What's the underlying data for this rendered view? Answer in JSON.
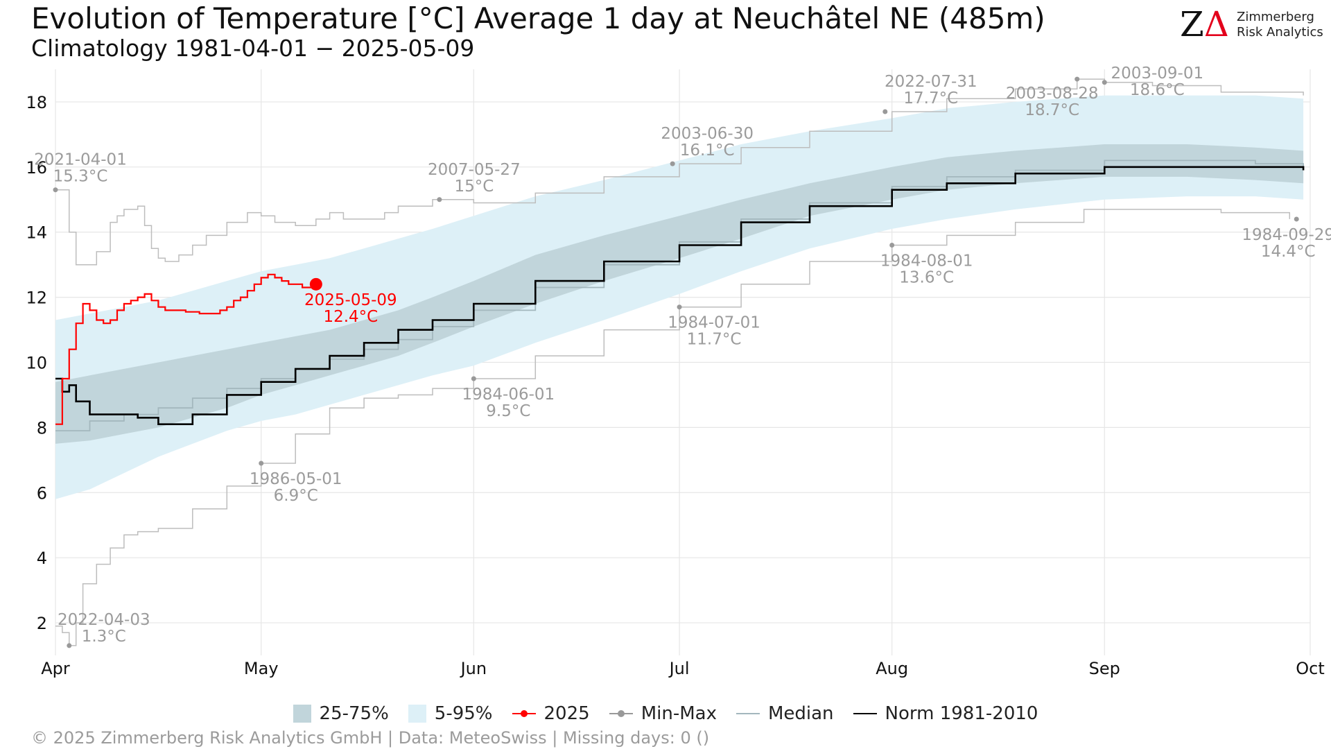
{
  "header": {
    "title": "Evolution of Temperature [°C] Average 1 day at Neuchâtel  NE (485m)",
    "subtitle": "Climatology 1981-04-01 − 2025-05-09"
  },
  "logo": {
    "mark_z": "Z",
    "mark_delta": "Δ",
    "line1": "Zimmerberg",
    "line2": "Risk Analytics"
  },
  "chart_data": {
    "type": "line",
    "title": "Evolution of Temperature [°C] Average 1 day at Neuchâtel  NE (485m)",
    "xlabel": "",
    "ylabel": "",
    "x_unit": "day of season (0 = Apr 1)",
    "xlim": [
      0,
      183
    ],
    "ylim": [
      1,
      19
    ],
    "y_ticks": [
      2,
      4,
      6,
      8,
      10,
      12,
      14,
      16,
      18
    ],
    "x_ticks": [
      {
        "label": "Apr",
        "day": 0
      },
      {
        "label": "May",
        "day": 30
      },
      {
        "label": "Jun",
        "day": 61
      },
      {
        "label": "Jul",
        "day": 91
      },
      {
        "label": "Aug",
        "day": 122
      },
      {
        "label": "Sep",
        "day": 153
      },
      {
        "label": "Oct",
        "day": 183
      }
    ],
    "grid": true,
    "legend_position": "bottom",
    "colors": {
      "band_25_75": "#c1d5db",
      "band_5_95": "#ddf0f7",
      "series_2025": "#ff0000",
      "min_max": "#bdbdbd",
      "min_max_point": "#999999",
      "median": "#a3b7bd",
      "norm": "#000000",
      "annotation": "#9b9b9b",
      "grid": "#e6e6e6"
    },
    "band_5_95": {
      "x": [
        0,
        5,
        10,
        15,
        20,
        25,
        30,
        35,
        40,
        45,
        50,
        55,
        61,
        70,
        80,
        91,
        100,
        110,
        122,
        130,
        140,
        153,
        165,
        175,
        182
      ],
      "lower": [
        5.8,
        6.1,
        6.6,
        7.1,
        7.5,
        7.9,
        8.2,
        8.4,
        8.7,
        9.0,
        9.3,
        9.6,
        9.9,
        10.6,
        11.3,
        12.1,
        12.8,
        13.5,
        14.1,
        14.4,
        14.7,
        15.0,
        15.1,
        15.1,
        15.0
      ],
      "upper": [
        11.3,
        11.5,
        11.7,
        11.9,
        12.2,
        12.5,
        12.8,
        13.0,
        13.2,
        13.5,
        13.8,
        14.1,
        14.5,
        15.1,
        15.6,
        16.2,
        16.7,
        17.1,
        17.5,
        17.8,
        18.0,
        18.2,
        18.2,
        18.2,
        18.1
      ]
    },
    "band_25_75": {
      "x": [
        0,
        5,
        10,
        15,
        20,
        25,
        30,
        35,
        40,
        45,
        50,
        55,
        61,
        70,
        80,
        91,
        100,
        110,
        122,
        130,
        140,
        153,
        165,
        175,
        182
      ],
      "lower": [
        7.5,
        7.6,
        7.8,
        8.0,
        8.3,
        8.6,
        9.0,
        9.3,
        9.6,
        9.9,
        10.2,
        10.6,
        11.1,
        11.8,
        12.5,
        13.2,
        13.8,
        14.5,
        15.0,
        15.3,
        15.5,
        15.7,
        15.7,
        15.6,
        15.5
      ],
      "upper": [
        9.4,
        9.6,
        9.8,
        10.0,
        10.2,
        10.4,
        10.6,
        10.8,
        11.0,
        11.3,
        11.6,
        12.0,
        12.5,
        13.3,
        13.9,
        14.5,
        15.0,
        15.5,
        16.0,
        16.3,
        16.5,
        16.7,
        16.7,
        16.6,
        16.5
      ]
    },
    "series": [
      {
        "name": "Median",
        "x": [
          0,
          5,
          10,
          15,
          20,
          25,
          30,
          35,
          40,
          45,
          50,
          55,
          61,
          70,
          80,
          91,
          100,
          110,
          122,
          130,
          140,
          153,
          165,
          175,
          182
        ],
        "values": [
          7.9,
          8.2,
          8.4,
          8.6,
          8.9,
          9.2,
          9.5,
          9.8,
          10.1,
          10.4,
          10.7,
          11.1,
          11.6,
          12.3,
          13.0,
          13.7,
          14.4,
          14.9,
          15.4,
          15.7,
          15.9,
          16.2,
          16.2,
          16.1,
          16.0
        ]
      },
      {
        "name": "Norm 1981-2010",
        "x": [
          0,
          1,
          2,
          3,
          5,
          8,
          12,
          15,
          20,
          25,
          30,
          35,
          40,
          45,
          50,
          55,
          61,
          70,
          80,
          91,
          100,
          110,
          122,
          130,
          140,
          153,
          165,
          175,
          182
        ],
        "values": [
          9.5,
          9.1,
          9.3,
          8.8,
          8.4,
          8.4,
          8.3,
          8.1,
          8.4,
          9.0,
          9.4,
          9.8,
          10.2,
          10.6,
          11.0,
          11.3,
          11.8,
          12.5,
          13.1,
          13.6,
          14.3,
          14.8,
          15.3,
          15.5,
          15.8,
          16.0,
          16.0,
          16.0,
          15.9
        ]
      },
      {
        "name": "2025",
        "x": [
          0,
          1,
          2,
          3,
          4,
          5,
          6,
          7,
          8,
          9,
          10,
          11,
          12,
          13,
          14,
          15,
          16,
          17,
          18,
          19,
          20,
          21,
          22,
          23,
          24,
          25,
          26,
          27,
          28,
          29,
          30,
          31,
          32,
          33,
          34,
          35,
          36,
          37,
          38
        ],
        "values": [
          8.1,
          9.5,
          10.4,
          11.2,
          11.8,
          11.6,
          11.3,
          11.2,
          11.3,
          11.6,
          11.8,
          11.9,
          12.0,
          12.1,
          11.9,
          11.7,
          11.6,
          11.6,
          11.6,
          11.55,
          11.55,
          11.5,
          11.5,
          11.5,
          11.6,
          11.7,
          11.9,
          12.0,
          12.2,
          12.4,
          12.6,
          12.7,
          12.6,
          12.5,
          12.4,
          12.4,
          12.3,
          12.3,
          12.4
        ]
      },
      {
        "name": "Max",
        "x": [
          0,
          2,
          3,
          4,
          6,
          8,
          9,
          10,
          12,
          13,
          14,
          15,
          16,
          18,
          20,
          22,
          25,
          28,
          30,
          32,
          35,
          38,
          40,
          42,
          45,
          48,
          50,
          55,
          61,
          70,
          80,
          91,
          100,
          110,
          122,
          130,
          140,
          149,
          153,
          160,
          170,
          182
        ],
        "values": [
          15.3,
          14.0,
          13.0,
          13.0,
          13.4,
          14.3,
          14.5,
          14.7,
          14.8,
          14.2,
          13.5,
          13.2,
          13.1,
          13.3,
          13.6,
          13.9,
          14.3,
          14.6,
          14.5,
          14.3,
          14.2,
          14.4,
          14.6,
          14.4,
          14.4,
          14.6,
          14.8,
          15.0,
          14.9,
          15.2,
          15.7,
          16.1,
          16.6,
          17.1,
          17.7,
          18.1,
          18.4,
          18.7,
          18.6,
          18.5,
          18.3,
          18.2
        ]
      },
      {
        "name": "Min",
        "x": [
          0,
          1,
          2,
          3,
          4,
          6,
          8,
          10,
          12,
          15,
          20,
          25,
          30,
          35,
          40,
          45,
          50,
          55,
          61,
          70,
          80,
          91,
          100,
          110,
          122,
          130,
          140,
          150,
          160,
          170,
          180
        ],
        "values": [
          1.9,
          1.7,
          1.3,
          2.0,
          3.2,
          3.8,
          4.3,
          4.7,
          4.8,
          4.9,
          5.5,
          6.2,
          6.9,
          7.8,
          8.6,
          8.9,
          9.0,
          9.2,
          9.5,
          10.2,
          11.0,
          11.7,
          12.4,
          13.1,
          13.6,
          13.9,
          14.3,
          14.7,
          14.7,
          14.6,
          14.4
        ]
      }
    ],
    "current_point": {
      "date": "2025-05-09",
      "value": 12.4,
      "day": 38
    },
    "annotations": [
      {
        "date": "2021-04-01",
        "value_label": "15.3°C",
        "day": 0,
        "value": 15.3,
        "color": "gray"
      },
      {
        "date": "2022-04-03",
        "value_label": "1.3°C",
        "day": 2,
        "value": 1.3,
        "color": "gray"
      },
      {
        "date": "1986-05-01",
        "value_label": "6.9°C",
        "day": 30,
        "value": 6.9,
        "color": "gray"
      },
      {
        "date": "2007-05-27",
        "value_label": "15°C",
        "day": 56,
        "value": 15.0,
        "color": "gray"
      },
      {
        "date": "1984-06-01",
        "value_label": "9.5°C",
        "day": 61,
        "value": 9.5,
        "color": "gray"
      },
      {
        "date": "2003-06-30",
        "value_label": "16.1°C",
        "day": 90,
        "value": 16.1,
        "color": "gray"
      },
      {
        "date": "1984-07-01",
        "value_label": "11.7°C",
        "day": 91,
        "value": 11.7,
        "color": "gray"
      },
      {
        "date": "2022-07-31",
        "value_label": "17.7°C",
        "day": 121,
        "value": 17.7,
        "color": "gray"
      },
      {
        "date": "1984-08-01",
        "value_label": "13.6°C",
        "day": 122,
        "value": 13.6,
        "color": "gray"
      },
      {
        "date": "2003-08-28",
        "value_label": "18.7°C",
        "day": 149,
        "value": 18.7,
        "color": "gray"
      },
      {
        "date": "2003-09-01",
        "value_label": "18.6°C",
        "day": 153,
        "value": 18.6,
        "color": "gray"
      },
      {
        "date": "1984-09-29",
        "value_label": "14.4°C",
        "day": 181,
        "value": 14.4,
        "color": "gray"
      },
      {
        "date": "2025-05-09",
        "value_label": "12.4°C",
        "day": 38,
        "value": 12.4,
        "color": "red"
      }
    ]
  },
  "legend": {
    "band_25_75": "25-75%",
    "band_5_95": "5-95%",
    "series_2025": "2025",
    "min_max": "Min-Max",
    "median": "Median",
    "norm": "Norm 1981-2010"
  },
  "footer": {
    "text": "©  2025 Zimmerberg Risk Analytics GmbH | Data: MeteoSwiss | Missing days: 0 ()"
  }
}
